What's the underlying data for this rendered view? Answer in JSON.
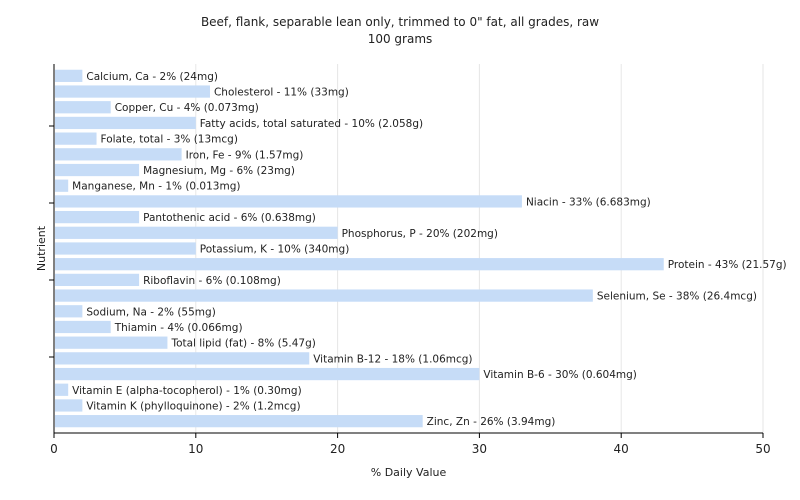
{
  "chart_data": {
    "type": "bar",
    "orientation": "horizontal",
    "title": "Beef, flank, separable lean only, trimmed to 0\" fat, all grades, raw",
    "subtitle": "100 grams",
    "xlabel": "% Daily Value",
    "ylabel": "Nutrient",
    "xlim": [
      0,
      50
    ],
    "xticks": [
      0,
      10,
      20,
      30,
      40,
      50
    ],
    "grid": "vertical",
    "bar_color": "#c6dcf7",
    "bars": [
      {
        "label": "Calcium, Ca - 2% (24mg)",
        "value": 2
      },
      {
        "label": "Cholesterol - 11% (33mg)",
        "value": 11
      },
      {
        "label": "Copper, Cu - 4% (0.073mg)",
        "value": 4
      },
      {
        "label": "Fatty acids, total saturated - 10% (2.058g)",
        "value": 10
      },
      {
        "label": "Folate, total - 3% (13mcg)",
        "value": 3
      },
      {
        "label": "Iron, Fe - 9% (1.57mg)",
        "value": 9
      },
      {
        "label": "Magnesium, Mg - 6% (23mg)",
        "value": 6
      },
      {
        "label": "Manganese, Mn - 1% (0.013mg)",
        "value": 1
      },
      {
        "label": "Niacin - 33% (6.683mg)",
        "value": 33
      },
      {
        "label": "Pantothenic acid - 6% (0.638mg)",
        "value": 6
      },
      {
        "label": "Phosphorus, P - 20% (202mg)",
        "value": 20
      },
      {
        "label": "Potassium, K - 10% (340mg)",
        "value": 10
      },
      {
        "label": "Protein - 43% (21.57g)",
        "value": 43
      },
      {
        "label": "Riboflavin - 6% (0.108mg)",
        "value": 6
      },
      {
        "label": "Selenium, Se - 38% (26.4mcg)",
        "value": 38
      },
      {
        "label": "Sodium, Na - 2% (55mg)",
        "value": 2
      },
      {
        "label": "Thiamin - 4% (0.066mg)",
        "value": 4
      },
      {
        "label": "Total lipid (fat) - 8% (5.47g)",
        "value": 8
      },
      {
        "label": "Vitamin B-12 - 18% (1.06mcg)",
        "value": 18
      },
      {
        "label": "Vitamin B-6 - 30% (0.604mg)",
        "value": 30
      },
      {
        "label": "Vitamin E (alpha-tocopherol) - 1% (0.30mg)",
        "value": 1
      },
      {
        "label": "Vitamin K (phylloquinone) - 2% (1.2mcg)",
        "value": 2
      },
      {
        "label": "Zinc, Zn - 26% (3.94mg)",
        "value": 26
      }
    ]
  }
}
